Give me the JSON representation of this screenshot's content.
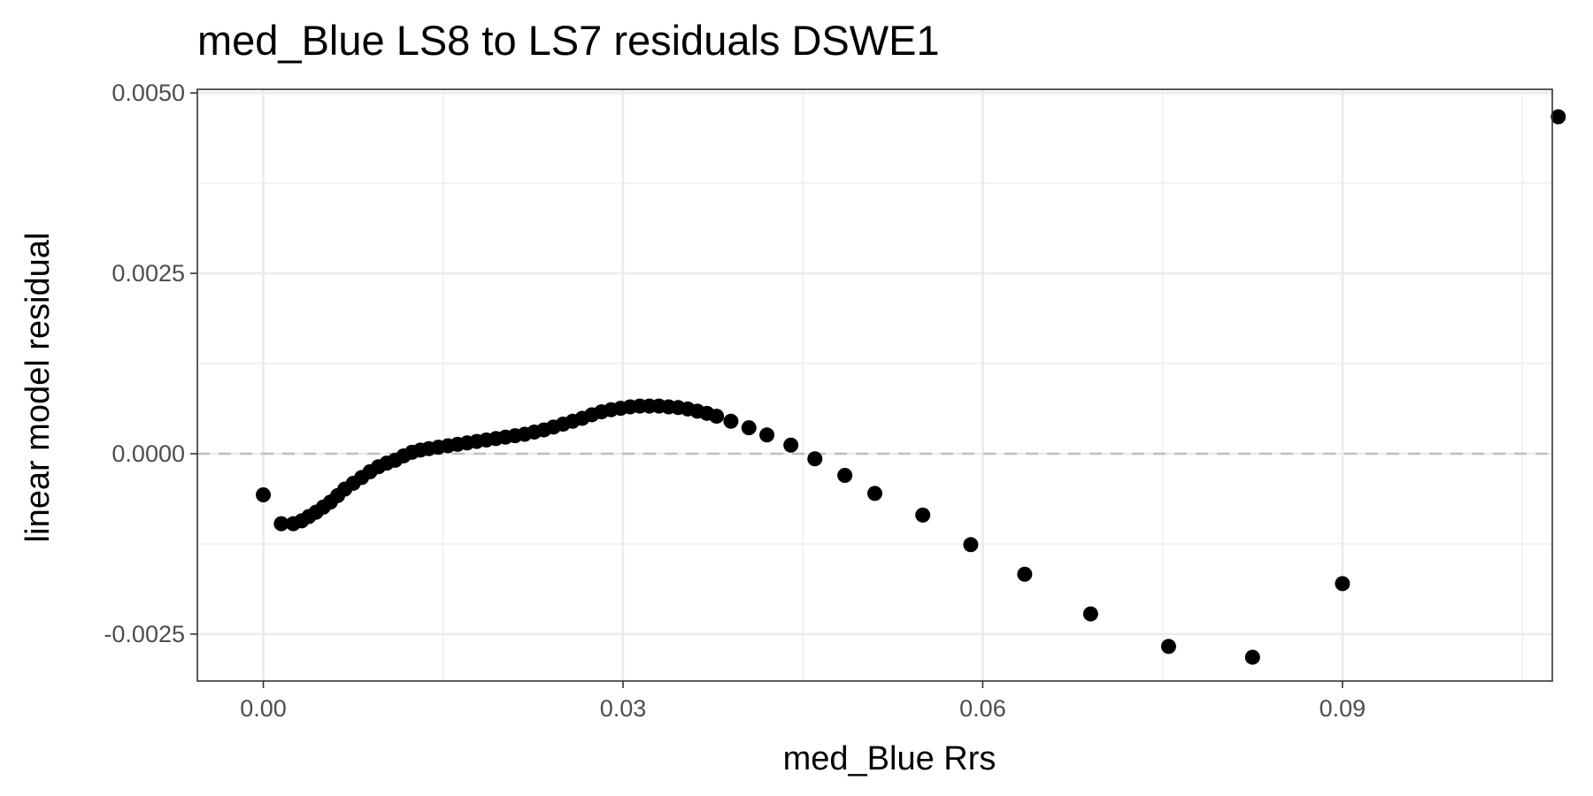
{
  "chart_data": {
    "type": "scatter",
    "title": "med_Blue LS8 to LS7 residuals DSWE1",
    "xlabel": "med_Blue  Rrs",
    "ylabel": "linear model residual",
    "xlim": [
      -0.0055,
      0.1075
    ],
    "ylim": [
      -0.00315,
      0.00505
    ],
    "x_ticks": [
      0.0,
      0.03,
      0.06,
      0.09
    ],
    "x_tick_labels": [
      "0.00",
      "0.03",
      "0.06",
      "0.09"
    ],
    "y_ticks": [
      -0.0025,
      0.0,
      0.0025,
      0.005
    ],
    "y_tick_labels": [
      "-0.0025",
      "0.0000",
      "0.0025",
      "0.0050"
    ],
    "reference_line": {
      "y": 0,
      "style": "dashed",
      "color": "#bfbfbf"
    },
    "grid": true,
    "point_color": "#000000",
    "points": [
      {
        "x": 0.0,
        "y": -0.00057
      },
      {
        "x": 0.0015,
        "y": -0.00097
      },
      {
        "x": 0.0025,
        "y": -0.00097
      },
      {
        "x": 0.0032,
        "y": -0.00093
      },
      {
        "x": 0.0038,
        "y": -0.00087
      },
      {
        "x": 0.0044,
        "y": -0.00081
      },
      {
        "x": 0.005,
        "y": -0.00074
      },
      {
        "x": 0.0056,
        "y": -0.00067
      },
      {
        "x": 0.0062,
        "y": -0.00058
      },
      {
        "x": 0.0068,
        "y": -0.00049
      },
      {
        "x": 0.0075,
        "y": -0.00041
      },
      {
        "x": 0.0082,
        "y": -0.00033
      },
      {
        "x": 0.0089,
        "y": -0.00025
      },
      {
        "x": 0.0096,
        "y": -0.00018
      },
      {
        "x": 0.0103,
        "y": -0.00013
      },
      {
        "x": 0.011,
        "y": -9e-05
      },
      {
        "x": 0.0117,
        "y": -3e-05
      },
      {
        "x": 0.0124,
        "y": 2e-05
      },
      {
        "x": 0.0131,
        "y": 5e-05
      },
      {
        "x": 0.0138,
        "y": 7e-05
      },
      {
        "x": 0.0146,
        "y": 9e-05
      },
      {
        "x": 0.0154,
        "y": 0.00011
      },
      {
        "x": 0.0162,
        "y": 0.00013
      },
      {
        "x": 0.017,
        "y": 0.00015
      },
      {
        "x": 0.0178,
        "y": 0.00017
      },
      {
        "x": 0.0186,
        "y": 0.00019
      },
      {
        "x": 0.0194,
        "y": 0.00021
      },
      {
        "x": 0.0202,
        "y": 0.00023
      },
      {
        "x": 0.021,
        "y": 0.00025
      },
      {
        "x": 0.0218,
        "y": 0.00027
      },
      {
        "x": 0.0226,
        "y": 0.0003
      },
      {
        "x": 0.0234,
        "y": 0.00033
      },
      {
        "x": 0.0242,
        "y": 0.00037
      },
      {
        "x": 0.025,
        "y": 0.00041
      },
      {
        "x": 0.0258,
        "y": 0.00045
      },
      {
        "x": 0.0266,
        "y": 0.00049
      },
      {
        "x": 0.0274,
        "y": 0.00054
      },
      {
        "x": 0.0282,
        "y": 0.00058
      },
      {
        "x": 0.029,
        "y": 0.00061
      },
      {
        "x": 0.0298,
        "y": 0.00063
      },
      {
        "x": 0.0306,
        "y": 0.00065
      },
      {
        "x": 0.0314,
        "y": 0.00066
      },
      {
        "x": 0.0322,
        "y": 0.00066
      },
      {
        "x": 0.033,
        "y": 0.00066
      },
      {
        "x": 0.0338,
        "y": 0.00065
      },
      {
        "x": 0.0346,
        "y": 0.00064
      },
      {
        "x": 0.0354,
        "y": 0.00062
      },
      {
        "x": 0.0362,
        "y": 0.00059
      },
      {
        "x": 0.037,
        "y": 0.00056
      },
      {
        "x": 0.0378,
        "y": 0.00052
      },
      {
        "x": 0.039,
        "y": 0.00045
      },
      {
        "x": 0.0405,
        "y": 0.00036
      },
      {
        "x": 0.042,
        "y": 0.00026
      },
      {
        "x": 0.044,
        "y": 0.00012
      },
      {
        "x": 0.046,
        "y": -7e-05
      },
      {
        "x": 0.0485,
        "y": -0.0003
      },
      {
        "x": 0.051,
        "y": -0.00055
      },
      {
        "x": 0.055,
        "y": -0.00085
      },
      {
        "x": 0.059,
        "y": -0.00126
      },
      {
        "x": 0.0635,
        "y": -0.00167
      },
      {
        "x": 0.069,
        "y": -0.00222
      },
      {
        "x": 0.0755,
        "y": -0.00267
      },
      {
        "x": 0.0825,
        "y": -0.00282
      },
      {
        "x": 0.09,
        "y": -0.0018
      },
      {
        "x": 0.108,
        "y": 0.00467
      }
    ]
  }
}
